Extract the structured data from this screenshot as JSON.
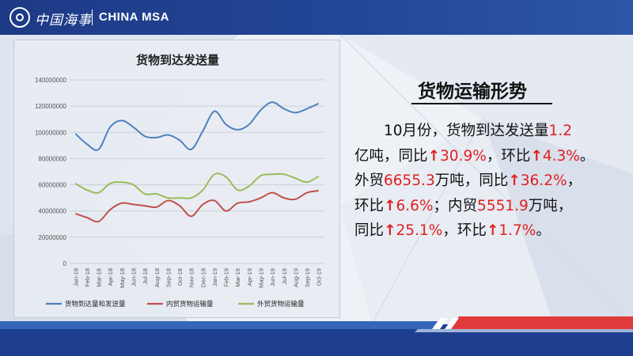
{
  "header": {
    "logo_cn": "中国海事",
    "logo_en": "CHINA MSA"
  },
  "chart_data": {
    "type": "line",
    "title": "货物到达发送量",
    "categories": [
      "Jan-18",
      "Feb-18",
      "Mar-18",
      "Apr-18",
      "May-18",
      "Jun-18",
      "Jul-18",
      "Aug-18",
      "Sep-18",
      "Oct-18",
      "Nov-18",
      "Dec-18",
      "Jan-19",
      "Feb-19",
      "Mar-19",
      "Apr-19",
      "May-19",
      "Jun-19",
      "Jul-19",
      "Aug-19",
      "Sep-19",
      "Oct-19"
    ],
    "ylim": [
      0,
      140000000
    ],
    "yticks": [
      0,
      20000000,
      40000000,
      60000000,
      80000000,
      100000000,
      120000000,
      140000000
    ],
    "ytick_labels": [
      "0",
      "20000000",
      "40000000",
      "60000000",
      "80000000",
      "100000000",
      "120000000",
      "140000000"
    ],
    "grid": true,
    "legend_position": "bottom",
    "series": [
      {
        "name": "货物到达量和发送量",
        "color": "#4f81bd",
        "values": [
          99000000,
          91000000,
          87000000,
          104000000,
          109000000,
          104000000,
          97000000,
          96000000,
          98000000,
          94000000,
          87000000,
          101000000,
          116000000,
          106000000,
          102000000,
          106000000,
          117000000,
          123000000,
          118000000,
          115000000,
          118000000,
          122000000
        ]
      },
      {
        "name": "内贸货物运输量",
        "color": "#c0504d",
        "values": [
          38000000,
          35000000,
          32000000,
          41000000,
          46000000,
          45000000,
          44000000,
          43000000,
          48000000,
          44000000,
          36000000,
          45000000,
          48000000,
          40000000,
          46000000,
          47000000,
          50000000,
          54000000,
          50000000,
          49000000,
          54000000,
          55500000
        ]
      },
      {
        "name": "外贸货物运输量",
        "color": "#9bbb59",
        "values": [
          61000000,
          56000000,
          54000000,
          61000000,
          62000000,
          60000000,
          53000000,
          53000000,
          50000000,
          50000000,
          50000000,
          56000000,
          68000000,
          66000000,
          56000000,
          59000000,
          67000000,
          68000000,
          68000000,
          65000000,
          62000000,
          66500000
        ]
      }
    ]
  },
  "panel": {
    "heading": "货物运输形势",
    "lines": [
      [
        {
          "t": "　　10月份，货物到达发送量",
          "c": "n"
        },
        {
          "t": "1.2",
          "c": "r"
        }
      ],
      [
        {
          "t": "亿吨，同比",
          "c": "n"
        },
        {
          "t": "↑",
          "c": "a"
        },
        {
          "t": "30.9%",
          "c": "r"
        },
        {
          "t": "，环比",
          "c": "n"
        },
        {
          "t": "↑",
          "c": "a"
        },
        {
          "t": "4.3%",
          "c": "r"
        },
        {
          "t": "。",
          "c": "n"
        }
      ],
      [
        {
          "t": "外贸",
          "c": "n"
        },
        {
          "t": "6655.3",
          "c": "r"
        },
        {
          "t": "万吨，同比",
          "c": "n"
        },
        {
          "t": "↑",
          "c": "a"
        },
        {
          "t": "36.2%",
          "c": "r"
        },
        {
          "t": "，",
          "c": "n"
        }
      ],
      [
        {
          "t": "环比",
          "c": "n"
        },
        {
          "t": "↑",
          "c": "a"
        },
        {
          "t": "6.6%",
          "c": "r"
        },
        {
          "t": "；内贸",
          "c": "n"
        },
        {
          "t": "5551.9",
          "c": "r"
        },
        {
          "t": "万吨，",
          "c": "n"
        }
      ],
      [
        {
          "t": "同比",
          "c": "n"
        },
        {
          "t": "↑",
          "c": "a"
        },
        {
          "t": "25.1%",
          "c": "r"
        },
        {
          "t": "，环比",
          "c": "n"
        },
        {
          "t": "↑",
          "c": "a"
        },
        {
          "t": "1.7%",
          "c": "r"
        },
        {
          "t": "。",
          "c": "n"
        }
      ]
    ]
  }
}
